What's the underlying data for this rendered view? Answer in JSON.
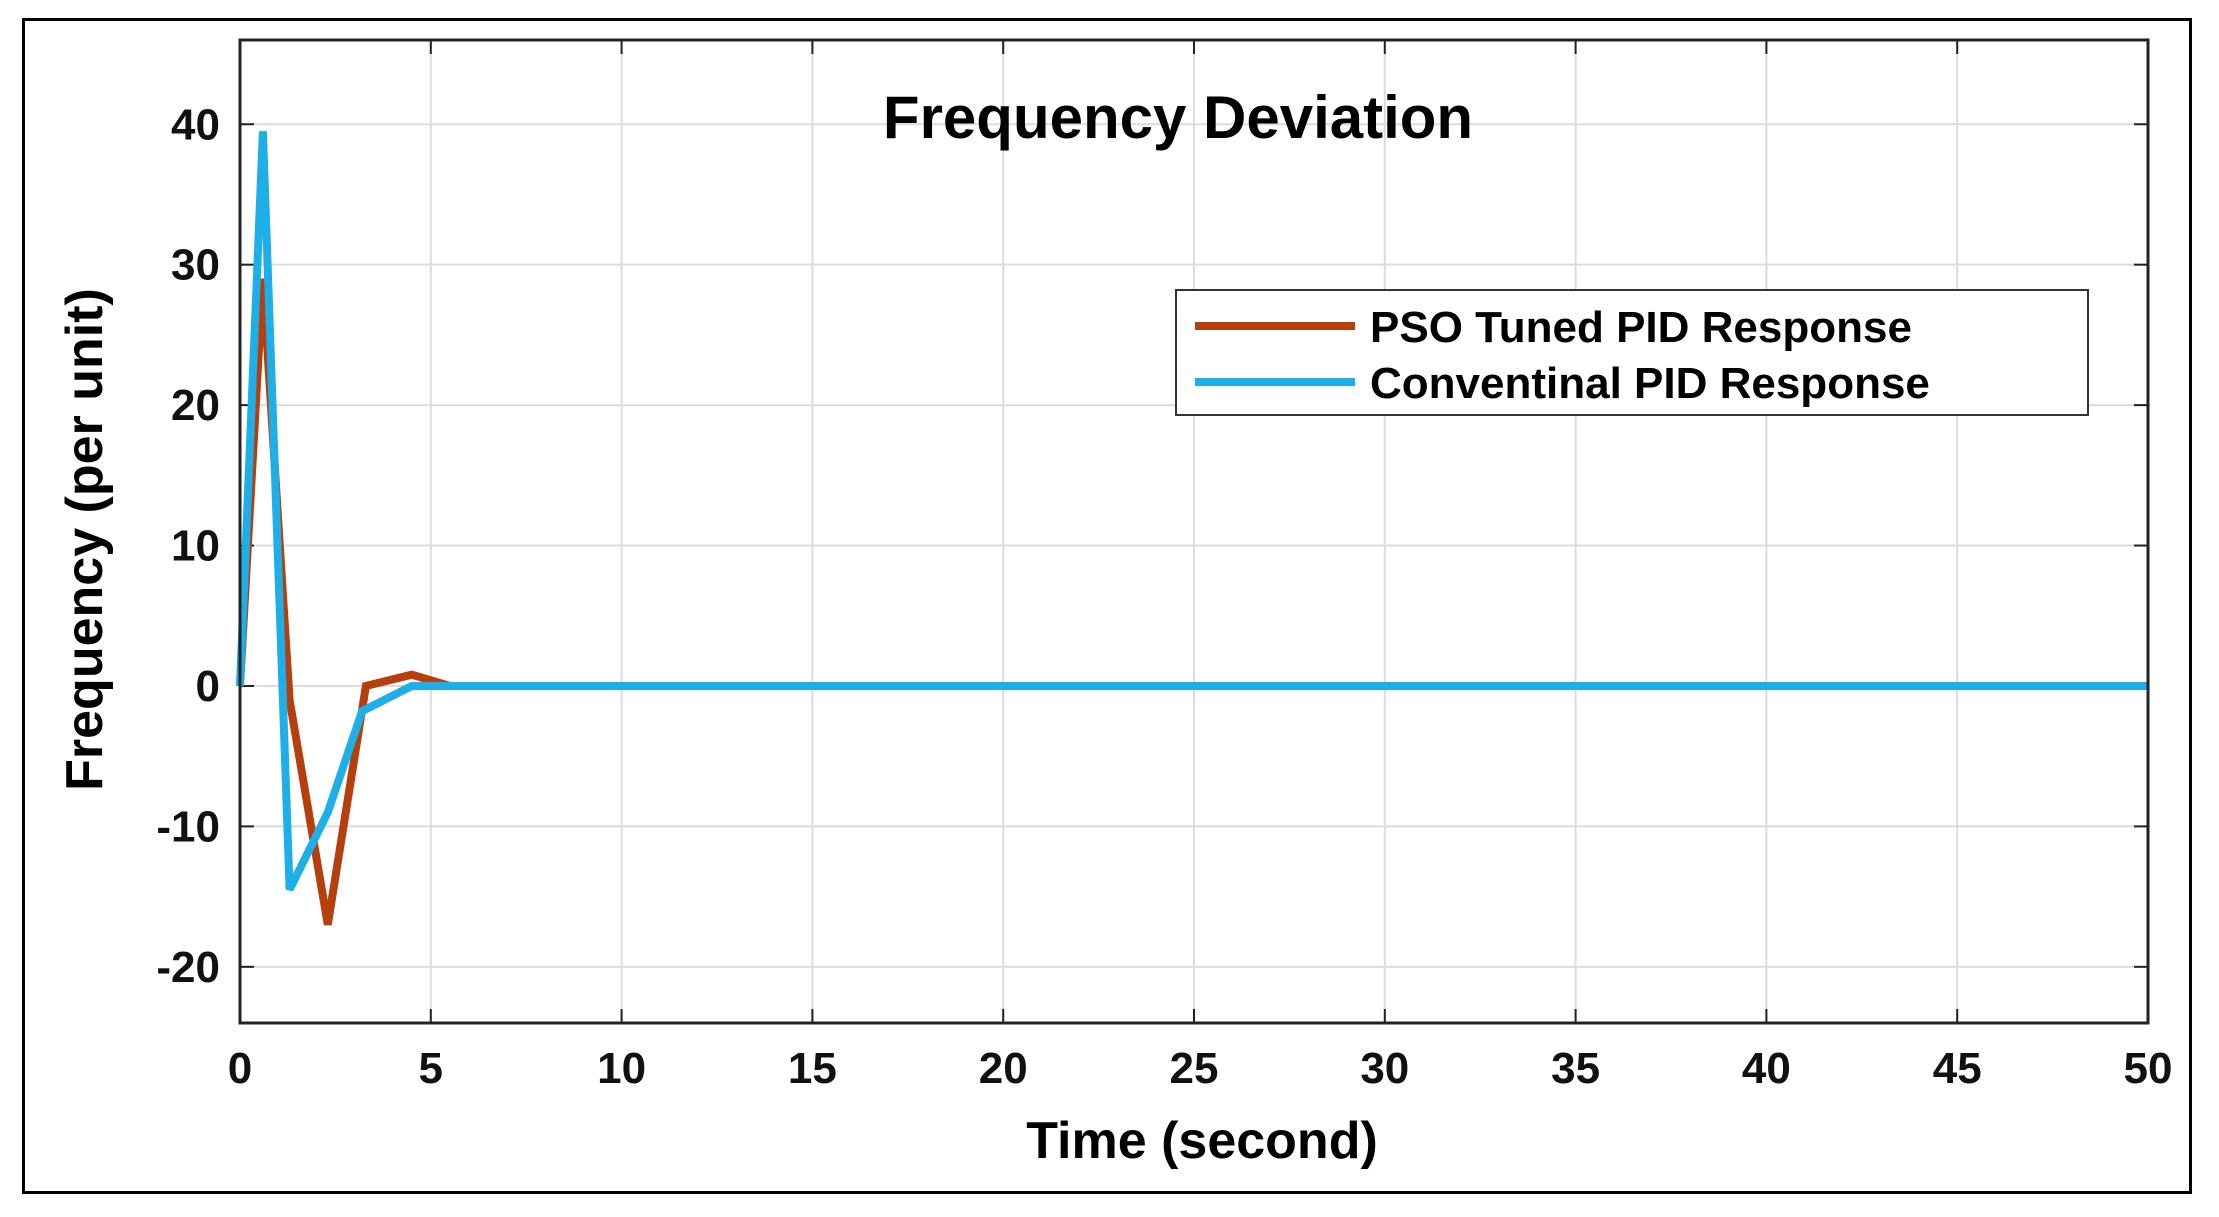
{
  "chart_data": {
    "type": "line",
    "title": "Frequency Deviation",
    "xlabel": "Time (second)",
    "ylabel": "Frequency (per unit)",
    "xlim": [
      0,
      50
    ],
    "ylim": [
      -24,
      46
    ],
    "xticks": [
      0,
      5,
      10,
      15,
      20,
      25,
      30,
      35,
      40,
      45,
      50
    ],
    "yticks": [
      -20,
      -10,
      0,
      10,
      20,
      30,
      40
    ],
    "grid": true,
    "legend_position": "top-right",
    "series": [
      {
        "name": "PSO Tuned PID Response",
        "color": "#b5400d",
        "x": [
          0,
          0.6,
          1.3,
          2.3,
          3.3,
          4.5,
          5.5,
          7,
          50
        ],
        "y": [
          0,
          29,
          -1,
          -17,
          0,
          0.8,
          0,
          0,
          0
        ]
      },
      {
        "name": "Conventinal PID Response",
        "color": "#1eaee8",
        "x": [
          0,
          0.6,
          1.3,
          2.3,
          3.2,
          4.5,
          50
        ],
        "y": [
          0,
          39.5,
          -14.5,
          -9,
          -1.8,
          0,
          0
        ]
      }
    ]
  }
}
